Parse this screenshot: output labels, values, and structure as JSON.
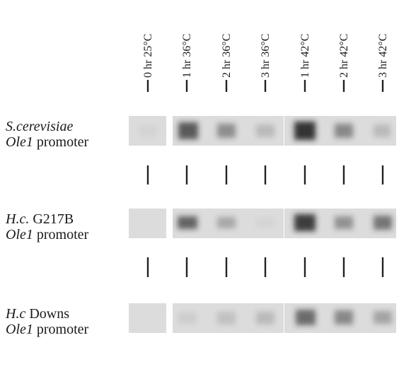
{
  "lanes": [
    "0 hr 25°C",
    "1 hr 36°C",
    "2 hr 36°C",
    "3 hr 36°C",
    "1 hr 42°C",
    "2 hr 42°C",
    "3 hr 42°C"
  ],
  "rows": [
    {
      "lines": [
        [
          {
            "text": "S.cerevisiae",
            "italic": true
          }
        ],
        [
          {
            "text": "Ole1",
            "italic": true
          },
          {
            "text": " promoter",
            "italic": false
          }
        ]
      ]
    },
    {
      "lines": [
        [
          {
            "text": "H.c.",
            "italic": true
          },
          {
            "text": " G217B",
            "italic": false
          }
        ],
        [
          {
            "text": "Ole1",
            "italic": true
          },
          {
            "text": " promoter",
            "italic": false
          }
        ]
      ]
    },
    {
      "lines": [
        [
          {
            "text": "H.c",
            "italic": true
          },
          {
            "text": " Downs",
            "italic": false
          }
        ],
        [
          {
            "text": "Ole1",
            "italic": true
          },
          {
            "text": " promoter",
            "italic": false
          }
        ]
      ]
    }
  ]
}
